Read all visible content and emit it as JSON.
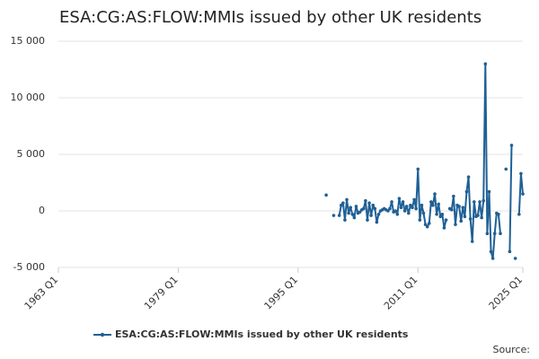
{
  "chart_data": {
    "type": "line",
    "title": "ESA:CG:AS:FLOW:MMIs issued by other UK residents",
    "source": "Source:",
    "xlim": [
      "1963 Q1",
      "2025 Q1"
    ],
    "xticks": [
      "1963 Q1",
      "1979 Q1",
      "1995 Q1",
      "2011 Q1",
      "2025 Q1"
    ],
    "ylim": [
      -5000,
      15000
    ],
    "yticks": [
      {
        "value": -5000,
        "label": "-5 000"
      },
      0,
      {
        "value": 5000,
        "label": "5 000"
      },
      {
        "value": 10000,
        "label": "10 000"
      },
      {
        "value": 15000,
        "label": "15 000"
      }
    ],
    "grid": true,
    "x": [
      "1998 Q4",
      "1999 Q1",
      "1999 Q2",
      "1999 Q3",
      "1999 Q4",
      "2000 Q1",
      "2000 Q2",
      "2000 Q3",
      "2000 Q4",
      "2001 Q1",
      "2001 Q2",
      "2001 Q3",
      "2001 Q4",
      "2002 Q1",
      "2002 Q2",
      "2002 Q3",
      "2002 Q4",
      "2003 Q1",
      "2003 Q2",
      "2003 Q3",
      "2003 Q4",
      "2004 Q1",
      "2004 Q2",
      "2004 Q3",
      "2004 Q4",
      "2005 Q1",
      "2005 Q2",
      "2005 Q3",
      "2005 Q4",
      "2006 Q1",
      "2006 Q2",
      "2006 Q3",
      "2006 Q4",
      "2007 Q1",
      "2007 Q2",
      "2007 Q3",
      "2007 Q4",
      "2008 Q1",
      "2008 Q2",
      "2008 Q3",
      "2008 Q4",
      "2009 Q1",
      "2009 Q2",
      "2009 Q3",
      "2009 Q4",
      "2010 Q1",
      "2010 Q2",
      "2010 Q3",
      "2010 Q4",
      "2011 Q1",
      "2011 Q2",
      "2011 Q3",
      "2011 Q4",
      "2012 Q1",
      "2012 Q2",
      "2012 Q3",
      "2012 Q4",
      "2013 Q1",
      "2013 Q2",
      "2013 Q3",
      "2013 Q4",
      "2014 Q1",
      "2014 Q2",
      "2014 Q3",
      "2014 Q4",
      "2015 Q1",
      "2015 Q2",
      "2015 Q3",
      "2015 Q4",
      "2016 Q1",
      "2016 Q2",
      "2016 Q3",
      "2016 Q4",
      "2017 Q1",
      "2017 Q2",
      "2017 Q3",
      "2017 Q4",
      "2018 Q1",
      "2018 Q2",
      "2018 Q3",
      "2018 Q4",
      "2019 Q1",
      "2019 Q2",
      "2019 Q3",
      "2019 Q4",
      "2020 Q1",
      "2020 Q2",
      "2020 Q3",
      "2020 Q4",
      "2021 Q1",
      "2021 Q2",
      "2021 Q3",
      "2021 Q4",
      "2022 Q1",
      "2022 Q2",
      "2022 Q3",
      "2022 Q4",
      "2023 Q1",
      "2023 Q2",
      "2023 Q3",
      "2023 Q4",
      "2024 Q1",
      "2024 Q2",
      "2024 Q3",
      "2024 Q4",
      "2025 Q1"
    ],
    "series": [
      {
        "name": "ESA:CG:AS:FLOW:MMIs issued by other UK residents",
        "color": "#206095",
        "values": [
          1400,
          null,
          null,
          null,
          -400,
          null,
          null,
          -400,
          500,
          700,
          -800,
          1000,
          -200,
          300,
          -300,
          -600,
          400,
          -200,
          -100,
          100,
          200,
          900,
          -800,
          700,
          -400,
          500,
          200,
          -1000,
          -300,
          0,
          100,
          200,
          100,
          0,
          200,
          800,
          -100,
          0,
          -300,
          1100,
          300,
          800,
          0,
          400,
          -200,
          500,
          300,
          1000,
          200,
          3700,
          -800,
          500,
          -200,
          -1200,
          -1400,
          -1100,
          800,
          500,
          1500,
          -300,
          600,
          -500,
          -300,
          -1500,
          -800,
          null,
          200,
          100,
          1300,
          -1200,
          500,
          400,
          -900,
          300,
          -500,
          1700,
          3000,
          -700,
          -2700,
          800,
          -500,
          -400,
          800,
          -600,
          900,
          13000,
          -2000,
          1700,
          -3600,
          -4200,
          -2000,
          -200,
          -300,
          -2000,
          null,
          null,
          3700,
          null,
          -3600,
          5800,
          null,
          -4200,
          null,
          -300,
          3300,
          1500
        ]
      }
    ]
  }
}
